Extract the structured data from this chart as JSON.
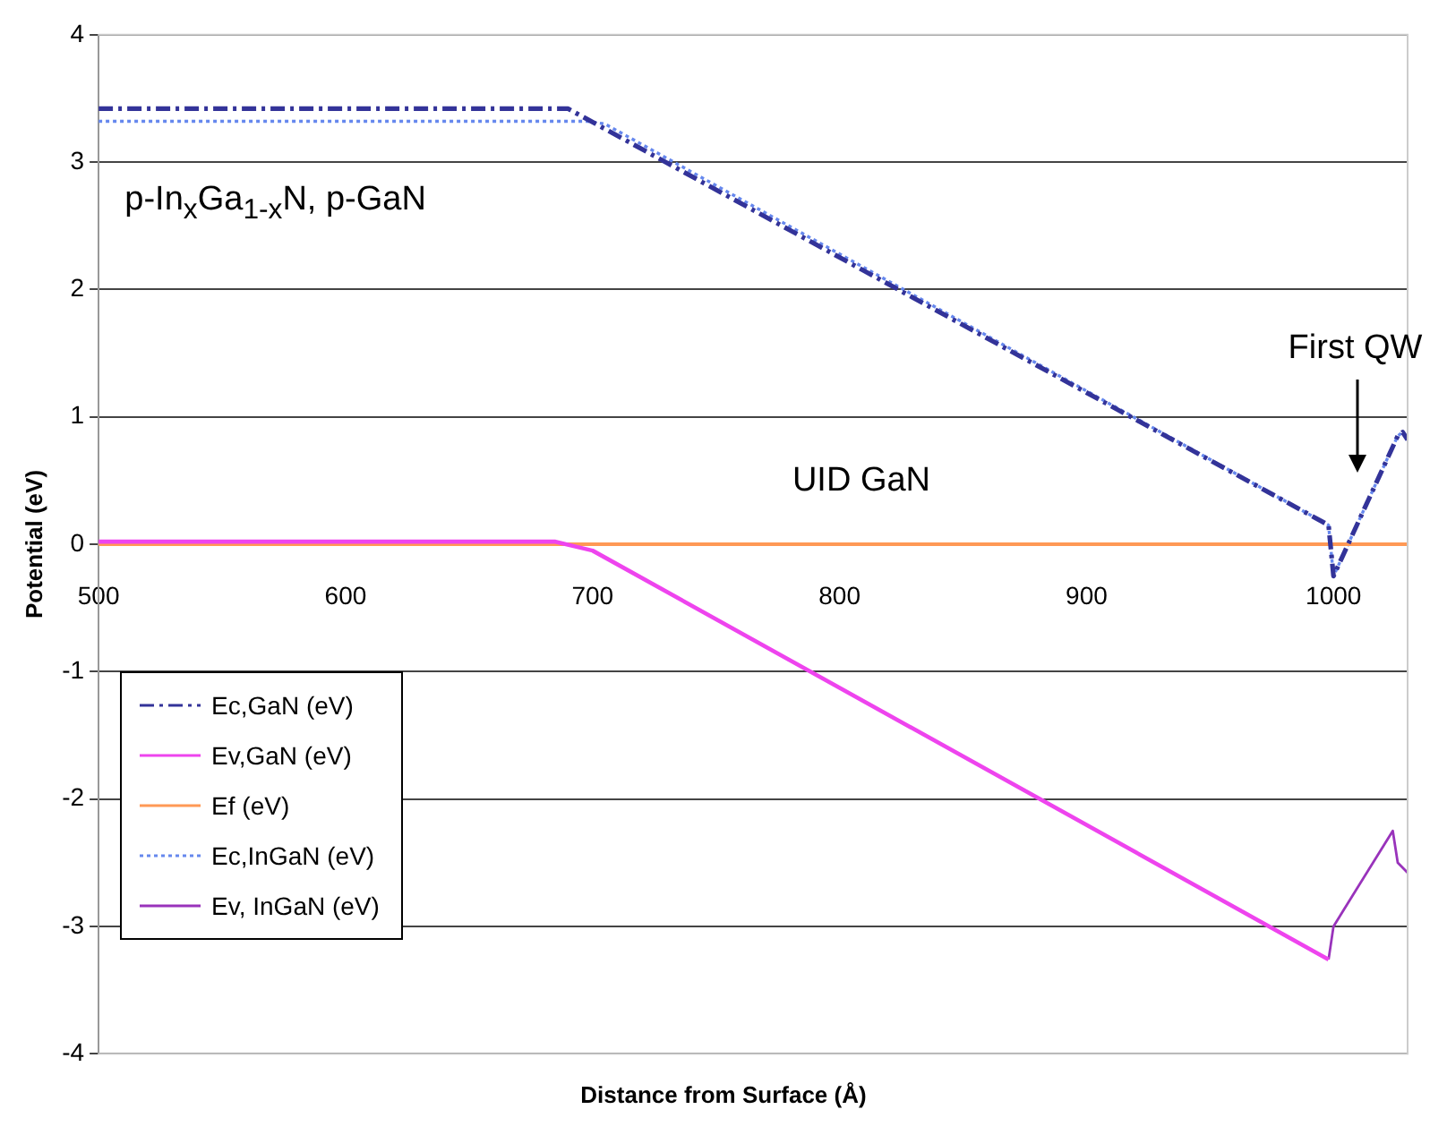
{
  "chart_data": {
    "type": "line",
    "xlabel": "Distance from Surface (Å)",
    "ylabel": "Potential (eV)",
    "xlim": [
      500,
      1030
    ],
    "xticks": [
      500,
      600,
      700,
      800,
      900,
      1000
    ],
    "ylim": [
      -4,
      4
    ],
    "yticks": [
      -4,
      -3,
      -2,
      -1,
      0,
      1,
      2,
      3,
      4
    ],
    "grid": "y",
    "legend": "left",
    "marker": "none",
    "series": [
      {
        "name": "Ec,GaN (eV)",
        "color": "#333399",
        "line_style": "dashed",
        "x": [
          500,
          690,
          998,
          1000,
          1026,
          1028,
          1030
        ],
        "values": [
          3.42,
          3.42,
          0.15,
          -0.25,
          0.85,
          0.88,
          0.82
        ]
      },
      {
        "name": "Ev,GaN (eV)",
        "color": "#ee44ee",
        "line_style": "solid",
        "x": [
          500,
          685,
          700,
          998
        ],
        "values": [
          0.02,
          0.02,
          -0.05,
          -3.26
        ]
      },
      {
        "name": "Ef (eV)",
        "color": "#ff9955",
        "line_style": "solid",
        "x": [
          500,
          1030
        ],
        "values": [
          0,
          0
        ]
      },
      {
        "name": "Ec,InGaN (eV)",
        "color": "#6688ee",
        "line_style": "dotted",
        "x": [
          500,
          698,
          705,
          998,
          1000,
          1026,
          1028,
          1030
        ],
        "values": [
          3.32,
          3.32,
          3.3,
          0.15,
          -0.25,
          0.85,
          0.88,
          0.82
        ]
      },
      {
        "name": "Ev, InGaN (eV)",
        "color": "#9933bb",
        "line_style": "solid",
        "x": [
          998,
          1000,
          1024,
          1026,
          1030
        ],
        "values": [
          -3.26,
          -3.0,
          -2.25,
          -2.5,
          -2.58
        ]
      }
    ],
    "annotations": [
      "p-In$_{x}$Ga$_{1-x}$N, p-GaN",
      "UID GaN",
      "First QW"
    ]
  }
}
